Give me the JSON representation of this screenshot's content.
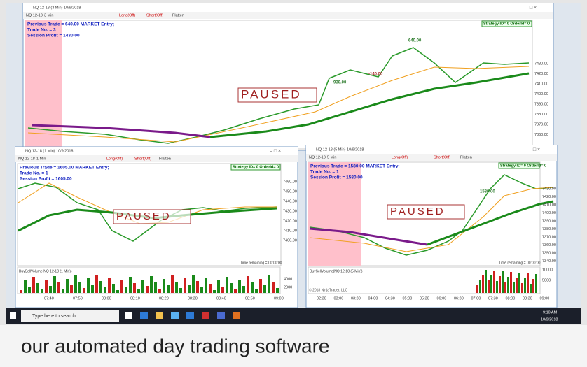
{
  "main_window": {
    "title": "NQ 12-18 (3 Min) 10/9/2018",
    "toolbar": [
      "NQ 12-18",
      "3 Min",
      "Long(Off)",
      "Short(Off)",
      "Flatten"
    ],
    "status": [
      "Previous Trade = 640.00   MARKET Entry;",
      "Trade No. = 3",
      "Session Profit = 1430.00"
    ],
    "strategy": "Strategy ID= 0  OrderId= 0",
    "paused": "PAUSED",
    "trade_labels": [
      "640.00",
      "-140.00",
      "930.00"
    ],
    "prices": [
      "7430.00",
      "7420.00",
      "7410.00",
      "7400.00",
      "7390.00",
      "7380.00",
      "7370.00",
      "7360.00"
    ]
  },
  "left_window": {
    "title": "NQ 12-18 (1 Min) 10/9/2018",
    "toolbar": [
      "NQ 12-18",
      "1 Min",
      "Long(Off)",
      "Short(Off)",
      "Flatten"
    ],
    "status": [
      "Previous Trade = 1605.00   MARKET Entry;",
      "Trade No. = 1",
      "Session Profit = 1605.00"
    ],
    "strategy": "Strategy ID= 0  OrderId= 0",
    "paused": "PAUSED",
    "prices": [
      "7460.00",
      "7450.00",
      "7440.00",
      "7430.00",
      "7420.00",
      "7410.00",
      "7400.00"
    ],
    "time_remaining": "Time remaining = 00:00:00",
    "volume_title": "BuySellVolume(NQ 12-18 (1 Min))",
    "volume_ticks": [
      "4000",
      "2000"
    ],
    "times": [
      "07:40",
      "07:50",
      "08:00",
      "08:10",
      "08:20",
      "08:30",
      "08:40",
      "08:50",
      "09:00"
    ]
  },
  "right_window": {
    "title": "NQ 12-18 (5 Min) 10/9/2018",
    "toolbar": [
      "NQ 12-18",
      "5 Min",
      "Long(Off)",
      "Short(Off)",
      "Flatten"
    ],
    "status": [
      "Previous Trade = 1580.00   MARKET Entry;",
      "Trade No. = 1",
      "Session Profit = 1580.00"
    ],
    "strategy": "Strategy ID= 0  OrderId= 0",
    "paused": "PAUSED",
    "trade_labels": [
      "1580.00"
    ],
    "prices": [
      "7430.00",
      "7420.00",
      "7410.00",
      "7400.00",
      "7390.00",
      "7380.00",
      "7370.00",
      "7360.00",
      "7350.00",
      "7340.00"
    ],
    "time_remaining": "Time remaining = 00:00:00",
    "volume_title": "BuySellVolume(NQ 12-18 (5 Min))",
    "volume_ticks": [
      "10000",
      "5000"
    ],
    "copyright": "© 2018 NinjaTrader, LLC",
    "times": [
      "02:30",
      "03:00",
      "03:30",
      "04:00",
      "04:30",
      "05:00",
      "05:30",
      "06:00",
      "06:30",
      "07:00",
      "07:30",
      "08:00",
      "08:30",
      "09:00"
    ]
  },
  "taskbar": {
    "search": "Type here to search",
    "time": "9:10 AM",
    "date": "10/9/2018"
  },
  "caption": "our automated day trading software"
}
